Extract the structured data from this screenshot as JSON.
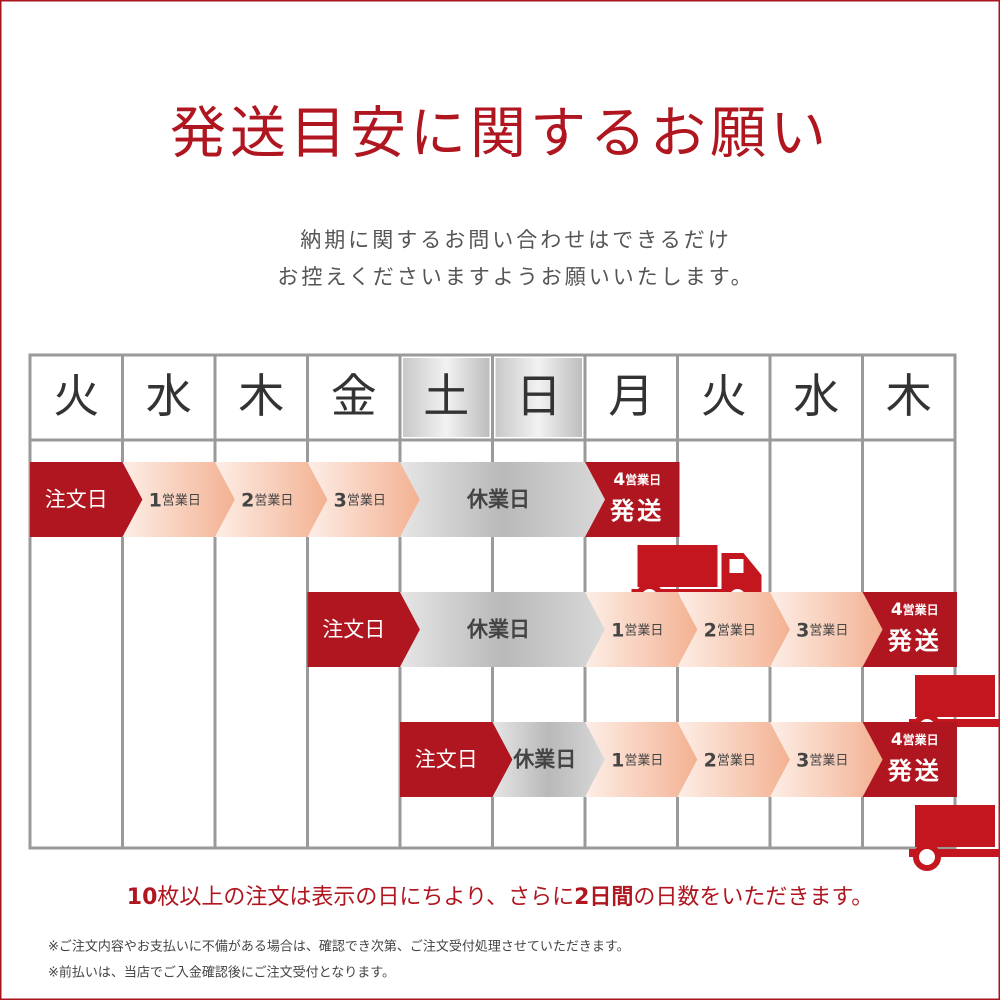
{
  "title": "発送目安に関するお願い",
  "intro": [
    "納期に関するお問い合わせはできるだけ",
    "お控えくださいますようお願いいたします。"
  ],
  "days": [
    "火",
    "水",
    "木",
    "金",
    "土",
    "日",
    "月",
    "火",
    "水",
    "木"
  ],
  "rows": [
    {
      "steps": [
        {
          "label": "注文日"
        },
        {
          "num": "1",
          "unit": "営業日"
        },
        {
          "num": "2",
          "unit": "営業日"
        },
        {
          "num": "3",
          "unit": "営業日"
        },
        {
          "label": "休業日"
        },
        {
          "num": "4",
          "unit": "営業日",
          "label": "発送"
        }
      ]
    },
    {
      "steps": [
        {
          "label": "注文日"
        },
        {
          "label": "休業日"
        },
        {
          "num": "1",
          "unit": "営業日"
        },
        {
          "num": "2",
          "unit": "営業日"
        },
        {
          "num": "3",
          "unit": "営業日"
        },
        {
          "num": "4",
          "unit": "営業日",
          "label": "発送"
        }
      ]
    },
    {
      "steps": [
        {
          "label": "注文日"
        },
        {
          "label": "休業日"
        },
        {
          "num": "1",
          "unit": "営業日"
        },
        {
          "num": "2",
          "unit": "営業日"
        },
        {
          "num": "3",
          "unit": "営業日"
        },
        {
          "num": "4",
          "unit": "営業日",
          "label": "発送"
        }
      ]
    }
  ],
  "notice": [
    "10",
    "枚以上の注文は表示の日にちより、さらに",
    "2日間",
    "の日数をいただきます。"
  ],
  "footnotes": [
    "※ご注文内容やお支払いに不備がある場合は、確認でき次第、ご注文受付処理させていただきます。",
    "※前払いは、当店でご入金確認後にご注文受付となります。"
  ]
}
